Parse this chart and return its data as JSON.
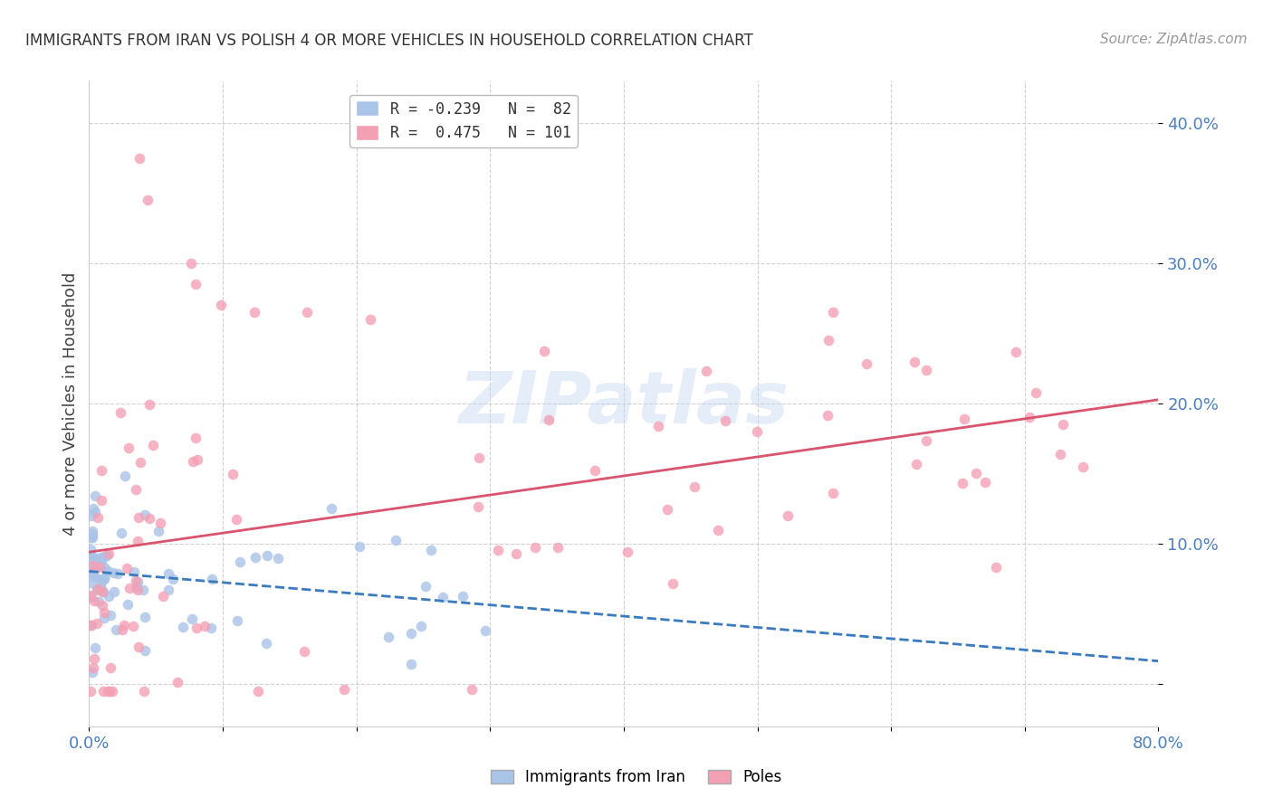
{
  "title": "IMMIGRANTS FROM IRAN VS POLISH 4 OR MORE VEHICLES IN HOUSEHOLD CORRELATION CHART",
  "source": "Source: ZipAtlas.com",
  "ylabel": "4 or more Vehicles in Household",
  "xlim": [
    0.0,
    0.8
  ],
  "ylim": [
    -0.03,
    0.43
  ],
  "iran_color": "#aac4e8",
  "poles_color": "#f4a0b4",
  "iran_line_color": "#3a7abf",
  "poles_line_color": "#d9546e",
  "background_color": "#ffffff",
  "tick_color": "#4a7fc0",
  "iran_R": -0.239,
  "iran_N": 82,
  "poles_R": 0.475,
  "poles_N": 101
}
